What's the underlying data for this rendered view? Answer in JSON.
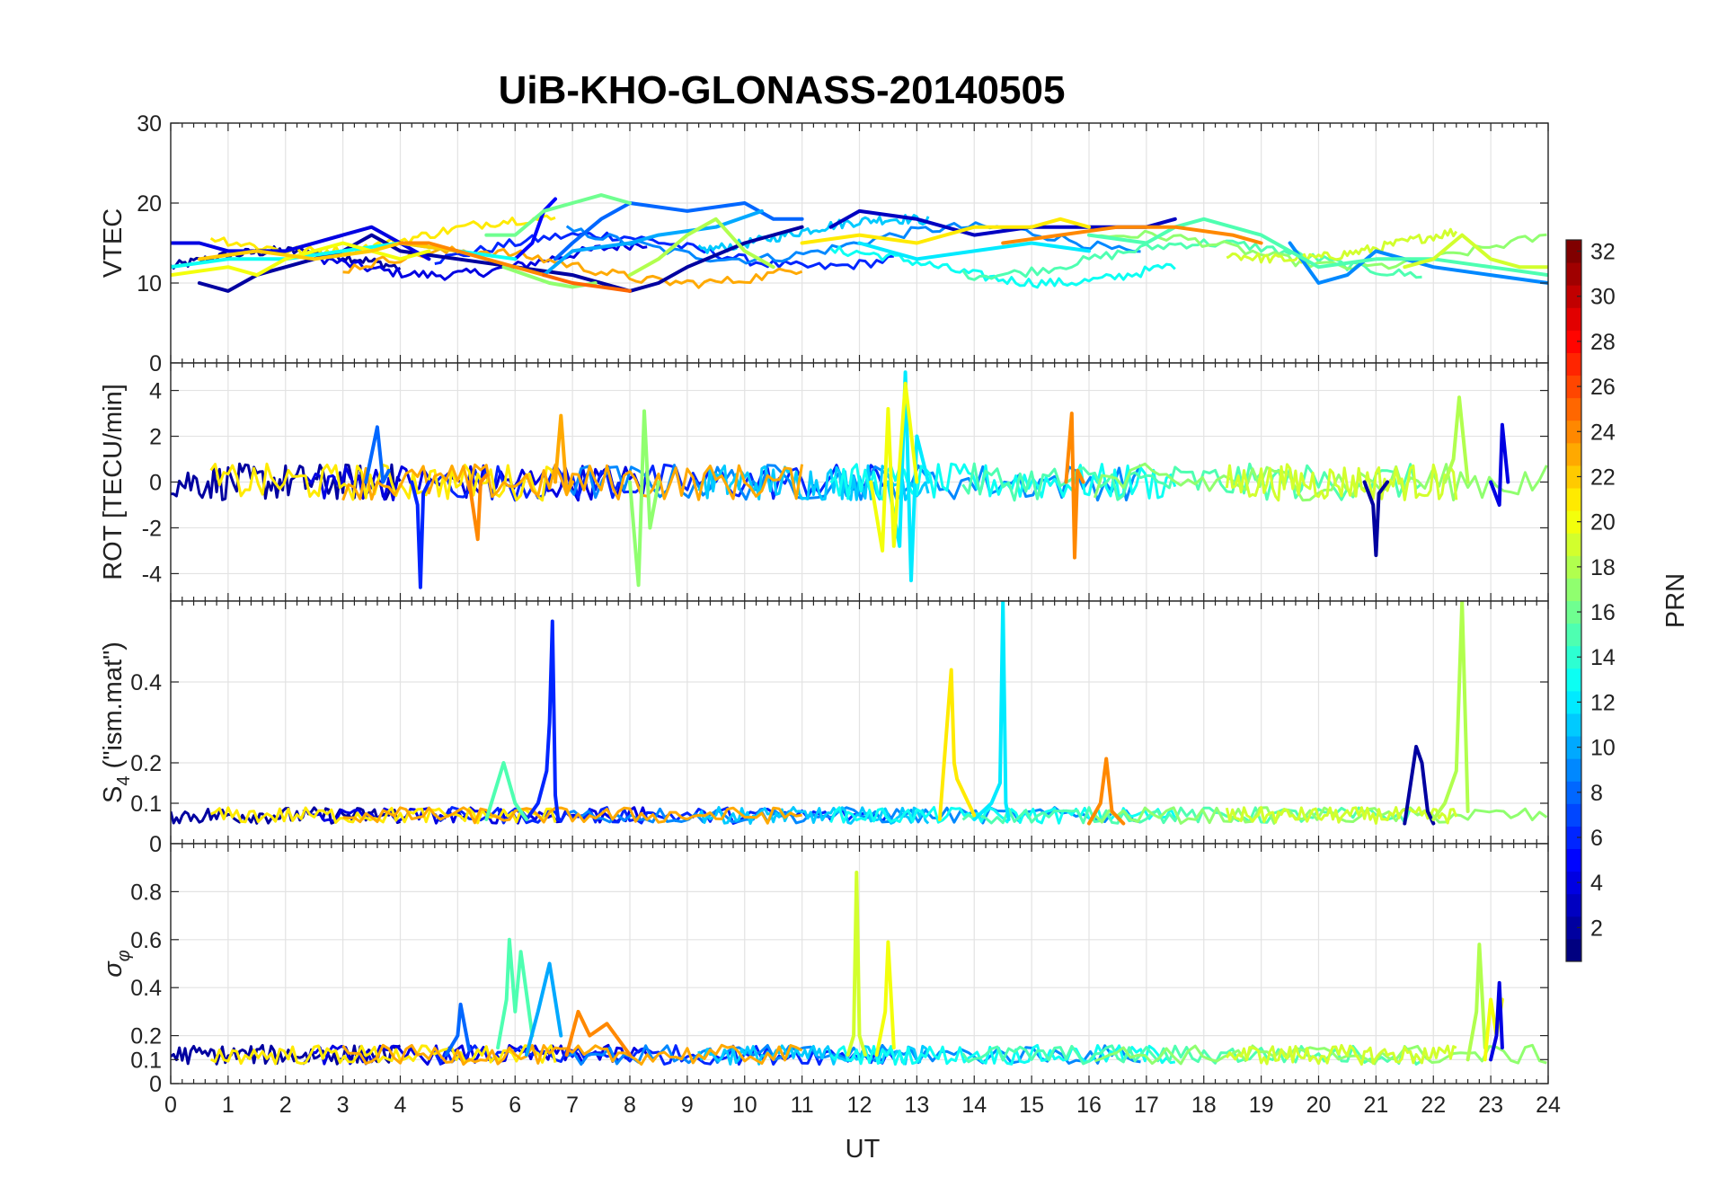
{
  "chart_data": {
    "type": "line",
    "title": "UiB-KHO-GLONASS-20140505",
    "xlabel": "UT",
    "xlim": [
      0,
      24
    ],
    "x_ticks": [
      "0",
      "1",
      "2",
      "3",
      "4",
      "5",
      "6",
      "7",
      "8",
      "9",
      "10",
      "11",
      "12",
      "13",
      "14",
      "15",
      "16",
      "17",
      "18",
      "19",
      "20",
      "21",
      "22",
      "23",
      "24"
    ],
    "colorbar": {
      "label": "PRN",
      "range": [
        1,
        32
      ],
      "ticks": [
        "2",
        "4",
        "6",
        "8",
        "10",
        "12",
        "14",
        "16",
        "18",
        "20",
        "22",
        "24",
        "26",
        "28",
        "30",
        "32"
      ],
      "colormap": "jet"
    },
    "panels": [
      {
        "ylabel": "VTEC",
        "ylim": [
          0,
          30
        ],
        "y_ticks": [
          {
            "value": 0,
            "label": "0"
          },
          {
            "value": 10,
            "label": "10"
          },
          {
            "value": 20,
            "label": "20"
          },
          {
            "value": 30,
            "label": "30"
          }
        ],
        "series": [
          {
            "prn": 2,
            "x": [
              0.5,
              1.0,
              1.5,
              2.0,
              3.0,
              3.5,
              4.0,
              5.0,
              6.0,
              7.0,
              8.0,
              8.5,
              9.0,
              10.0,
              11.0
            ],
            "values": [
              10,
              9,
              11,
              12,
              14,
              16,
              14,
              13,
              12,
              11,
              9,
              10,
              12,
              15,
              17
            ]
          },
          {
            "prn": 4,
            "x": [
              0,
              0.5,
              1.0,
              2.0,
              3.0,
              3.5,
              4.5
            ],
            "values": [
              15,
              15,
              14,
              14,
              16,
              17,
              13
            ]
          },
          {
            "prn": 3,
            "x": [
              11.5,
              12.0,
              13.0,
              13.5,
              14.0,
              15.0,
              16.0,
              17.0,
              17.5
            ],
            "values": [
              17,
              19,
              18,
              17,
              16,
              17,
              17,
              17,
              18
            ]
          },
          {
            "prn": 5,
            "x": [
              6.0,
              6.3,
              6.5,
              6.7
            ],
            "values": [
              13,
              15,
              19,
              20.5
            ]
          },
          {
            "prn": 8,
            "x": [
              6.7,
              7.0,
              7.5,
              8.0,
              9.0,
              10.0,
              10.5,
              11.0
            ],
            "values": [
              13,
              15,
              18,
              20,
              19,
              20,
              18,
              18
            ]
          },
          {
            "prn": 10,
            "x": [
              6.5,
              7.0,
              8.0,
              8.5,
              9.5,
              10.3
            ],
            "values": [
              11,
              14,
              15,
              16,
              17,
              19
            ]
          },
          {
            "prn": 9,
            "x": [
              19.5,
              20.0,
              20.5,
              21.0,
              21.5,
              22.0,
              23.0,
              24.0
            ],
            "values": [
              15,
              10,
              11,
              14,
              13,
              12,
              11,
              10
            ]
          },
          {
            "prn": 12,
            "x": [
              12.0,
              12.5,
              13.0,
              14.0,
              15.0,
              16.0
            ],
            "values": [
              15,
              14,
              13,
              14,
              15,
              14
            ]
          },
          {
            "prn": 13,
            "x": [
              0,
              1.0,
              2.0,
              3.0,
              4.0,
              5.0,
              6.0
            ],
            "values": [
              12,
              13,
              13,
              14,
              15,
              14,
              13
            ]
          },
          {
            "prn": 15,
            "x": [
              16.0,
              17.0,
              17.5,
              18.0,
              19.0,
              20.0,
              21.0,
              22.0,
              23.0,
              24.0
            ],
            "values": [
              16,
              15,
              17,
              18,
              16,
              12,
              13,
              13,
              12,
              11
            ]
          },
          {
            "prn": 16,
            "x": [
              5.5,
              6.0,
              6.5,
              7.0,
              7.5,
              8.0
            ],
            "values": [
              16,
              16,
              19,
              20,
              21,
              20
            ]
          },
          {
            "prn": 17,
            "x": [
              5.8,
              6.2,
              6.6,
              7.0,
              7.4
            ],
            "values": [
              12,
              11,
              10,
              9.5,
              10
            ]
          },
          {
            "prn": 18,
            "x": [
              8.0,
              8.5,
              9.0,
              9.5,
              10.0,
              10.5
            ],
            "values": [
              11,
              13,
              16,
              18,
              14,
              12
            ]
          },
          {
            "prn": 19,
            "x": [
              21.5,
              22.0,
              22.5,
              23.0,
              23.5,
              24.0
            ],
            "values": [
              12,
              13,
              16,
              13,
              12,
              12
            ]
          },
          {
            "prn": 20,
            "x": [
              0,
              1.0,
              1.5,
              2.0,
              3.0,
              4.0,
              4.5
            ],
            "values": [
              11,
              12,
              11,
              13,
              15,
              13,
              14
            ]
          },
          {
            "prn": 21,
            "x": [
              11.0,
              12.0,
              13.0,
              14.0,
              15.0,
              15.5,
              16.0
            ],
            "values": [
              15,
              16,
              15,
              17,
              17,
              18,
              17
            ]
          },
          {
            "prn": 22,
            "x": [
              0.5,
              1.5,
              2.5,
              3.5,
              4.0,
              5.0
            ],
            "values": [
              13,
              14,
              13,
              14,
              15,
              14
            ]
          },
          {
            "prn": 24,
            "x": [
              4.0,
              4.5,
              5.0,
              5.5,
              6.0,
              6.5
            ],
            "values": [
              15,
              15,
              14,
              13,
              12,
              11
            ]
          },
          {
            "prn": 25,
            "x": [
              6.5,
              7.0,
              7.5,
              8.0
            ],
            "values": [
              11,
              10,
              9.5,
              9
            ]
          },
          {
            "prn": 24,
            "x": [
              14.5,
              15.5,
              16.5,
              17.5,
              18.5,
              19.0
            ],
            "values": [
              15,
              16,
              17,
              17,
              16,
              15
            ]
          }
        ]
      },
      {
        "ylabel": "ROT [TECU/min]",
        "ylim": [
          -5.2,
          5.2
        ],
        "y_ticks": [
          {
            "value": -4,
            "label": "-4"
          },
          {
            "value": -2,
            "label": "-2"
          },
          {
            "value": 0,
            "label": "0"
          },
          {
            "value": 2,
            "label": "2"
          },
          {
            "value": 4,
            "label": "4"
          }
        ],
        "series": [
          {
            "prn": 2,
            "x": [
              20.8,
              20.95,
              21.0,
              21.05,
              21.2
            ],
            "values": [
              0,
              -1,
              -3.2,
              -0.5,
              0
            ]
          },
          {
            "prn": 6,
            "x": [
              4.2,
              4.3,
              4.35,
              4.4,
              4.5
            ],
            "values": [
              0,
              -1,
              -4.6,
              -0.5,
              0
            ]
          },
          {
            "prn": 8,
            "x": [
              3.4,
              3.6,
              3.7,
              3.8
            ],
            "values": [
              0,
              2.4,
              0,
              0.5
            ]
          },
          {
            "prn": 24,
            "x": [
              5.2,
              5.35,
              5.4,
              5.5
            ],
            "values": [
              0,
              -2.5,
              0,
              0.3
            ]
          },
          {
            "prn": 24,
            "x": [
              15.6,
              15.7,
              15.75,
              15.8,
              15.9
            ],
            "values": [
              0,
              3.0,
              -3.3,
              0.5,
              0
            ]
          },
          {
            "prn": 23,
            "x": [
              6.7,
              6.8,
              6.9,
              7.0
            ],
            "values": [
              0,
              2.9,
              -0.5,
              0
            ]
          },
          {
            "prn": 17,
            "x": [
              8.0,
              8.15,
              8.25,
              8.35,
              8.5
            ],
            "values": [
              0,
              -4.5,
              3.1,
              -2.0,
              0
            ]
          },
          {
            "prn": 12,
            "x": [
              12.5,
              12.7,
              12.8,
              12.9,
              13.0,
              13.2
            ],
            "values": [
              0,
              -2.8,
              4.8,
              -4.3,
              2.0,
              0
            ]
          },
          {
            "prn": 20,
            "x": [
              12.2,
              12.4,
              12.5,
              12.6,
              12.8,
              13.0
            ],
            "values": [
              0,
              -3.0,
              3.2,
              -2.8,
              4.3,
              0
            ]
          },
          {
            "prn": 18,
            "x": [
              22.2,
              22.35,
              22.45,
              22.6
            ],
            "values": [
              0,
              1.0,
              3.7,
              0
            ]
          },
          {
            "prn": 4,
            "x": [
              23.0,
              23.15,
              23.2,
              23.3
            ],
            "values": [
              0,
              -1.0,
              2.5,
              0
            ]
          }
        ]
      },
      {
        "ylabel": "S_4 (\"ism.mat\")",
        "ylim": [
          0,
          0.6
        ],
        "y_ticks": [
          {
            "value": 0,
            "label": "0"
          },
          {
            "value": 0.1,
            "label": "0.1"
          },
          {
            "value": 0.2,
            "label": "0.2"
          },
          {
            "value": 0.4,
            "label": "0.4"
          }
        ],
        "series": [
          {
            "prn": 6,
            "x": [
              6.2,
              6.4,
              6.55,
              6.6,
              6.65,
              6.7,
              6.75
            ],
            "values": [
              0.06,
              0.1,
              0.18,
              0.3,
              0.55,
              0.12,
              0.06
            ]
          },
          {
            "prn": 12,
            "x": [
              14.0,
              14.3,
              14.45,
              14.5,
              14.55,
              14.6
            ],
            "values": [
              0.06,
              0.1,
              0.15,
              0.6,
              0.1,
              0.06
            ]
          },
          {
            "prn": 21,
            "x": [
              13.4,
              13.6,
              13.65,
              13.7,
              13.9,
              14.0
            ],
            "values": [
              0.06,
              0.43,
              0.2,
              0.16,
              0.1,
              0.07
            ]
          },
          {
            "prn": 24,
            "x": [
              16.0,
              16.2,
              16.3,
              16.4,
              16.6
            ],
            "values": [
              0.05,
              0.1,
              0.21,
              0.08,
              0.05
            ]
          },
          {
            "prn": 2,
            "x": [
              21.5,
              21.7,
              21.8,
              21.9,
              22.0
            ],
            "values": [
              0.05,
              0.24,
              0.2,
              0.08,
              0.05
            ]
          },
          {
            "prn": 18,
            "x": [
              22.0,
              22.2,
              22.4,
              22.5,
              22.6
            ],
            "values": [
              0.06,
              0.1,
              0.18,
              0.6,
              0.08
            ]
          },
          {
            "prn": 15,
            "x": [
              5.5,
              5.8,
              6.0,
              6.2
            ],
            "values": [
              0.06,
              0.2,
              0.1,
              0.06
            ]
          }
        ]
      },
      {
        "ylabel": "σ_φ",
        "ylim": [
          0,
          1.0
        ],
        "y_ticks": [
          {
            "value": 0,
            "label": "0"
          },
          {
            "value": 0.1,
            "label": "0.1"
          },
          {
            "value": 0.2,
            "label": "0.2"
          },
          {
            "value": 0.4,
            "label": "0.4"
          },
          {
            "value": 0.6,
            "label": "0.6"
          },
          {
            "value": 0.8,
            "label": "0.8"
          }
        ],
        "series": [
          {
            "prn": 15,
            "x": [
              5.7,
              5.85,
              5.9,
              6.0,
              6.1,
              6.3
            ],
            "values": [
              0.15,
              0.35,
              0.6,
              0.3,
              0.55,
              0.2
            ]
          },
          {
            "prn": 19,
            "x": [
              11.8,
              11.9,
              11.95,
              12.0,
              12.1
            ],
            "values": [
              0.12,
              0.2,
              0.88,
              0.2,
              0.12
            ]
          },
          {
            "prn": 20,
            "x": [
              12.3,
              12.45,
              12.5,
              12.6
            ],
            "values": [
              0.12,
              0.3,
              0.59,
              0.15
            ]
          },
          {
            "prn": 18,
            "x": [
              22.6,
              22.75,
              22.8,
              22.9
            ],
            "values": [
              0.1,
              0.3,
              0.58,
              0.15
            ]
          },
          {
            "prn": 20,
            "x": [
              22.9,
              23.0,
              23.1,
              23.2
            ],
            "values": [
              0.1,
              0.35,
              0.2,
              0.35
            ]
          },
          {
            "prn": 4,
            "x": [
              23.0,
              23.1,
              23.15,
              23.2
            ],
            "values": [
              0.1,
              0.2,
              0.42,
              0.15
            ]
          },
          {
            "prn": 8,
            "x": [
              4.8,
              5.0,
              5.05,
              5.2
            ],
            "values": [
              0.12,
              0.2,
              0.33,
              0.14
            ]
          },
          {
            "prn": 10,
            "x": [
              6.2,
              6.4,
              6.6,
              6.8
            ],
            "values": [
              0.12,
              0.3,
              0.5,
              0.2
            ]
          },
          {
            "prn": 24,
            "x": [
              6.9,
              7.1,
              7.3,
              7.6,
              8.0
            ],
            "values": [
              0.12,
              0.3,
              0.2,
              0.25,
              0.12
            ]
          }
        ]
      }
    ]
  }
}
